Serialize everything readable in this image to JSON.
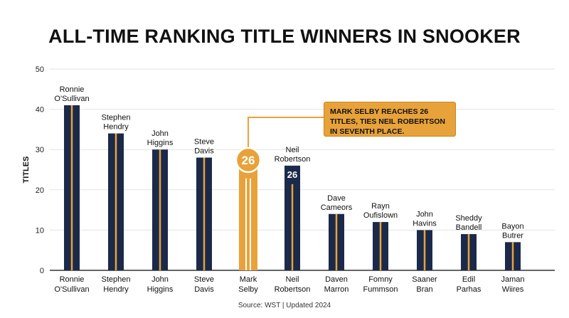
{
  "colors": {
    "bar": "#1b2a4a",
    "accent": "#e8a23a",
    "grid": "#e3e3e3",
    "axis": "#333333"
  },
  "chart_data": {
    "type": "bar",
    "title": "ALL-TIME RANKING TITLE WINNERS IN SNOOKER",
    "ylabel": "TITLES",
    "xlabel": "",
    "ylim": [
      0,
      50
    ],
    "yticks": [
      0,
      10,
      20,
      30,
      40,
      50
    ],
    "grid": true,
    "categories": [
      "Ronnie O'Sullivan",
      "Stephen Hendry",
      "John Higgins",
      "Steve Davis",
      "Mark Selby",
      "Neil Robertson",
      "Daven Marron",
      "Fomny Fummson",
      "Saaner Bran",
      "Edil Parhas",
      "Jaman Wiires"
    ],
    "category_lines": [
      [
        "Ronnie",
        "O'Sullivan"
      ],
      [
        "Stephen",
        "Hendry"
      ],
      [
        "John",
        "Higgins"
      ],
      [
        "Steve",
        "Davis"
      ],
      [
        "Mark",
        "Selby"
      ],
      [
        "Neil",
        "Robertson"
      ],
      [
        "Daven",
        "Marron"
      ],
      [
        "Fomny",
        "Fummson"
      ],
      [
        "Saaner",
        "Bran"
      ],
      [
        "Edil",
        "Parhas"
      ],
      [
        "Jaman",
        "Wiires"
      ]
    ],
    "bar_labels": [
      [
        "Ronnie",
        "O'Sullivan"
      ],
      [
        "Stephen",
        "Hendry"
      ],
      [
        "John",
        "Higgins"
      ],
      [
        "Steve",
        "Davis"
      ],
      null,
      [
        "Neil",
        "Robertson"
      ],
      [
        "Dave",
        "Cameors"
      ],
      [
        "Rayn",
        "Oufislown"
      ],
      [
        "John",
        "Havins"
      ],
      [
        "Sheddy",
        "Bandell"
      ],
      [
        "Bayon",
        "Butrer"
      ]
    ],
    "values": [
      41,
      34,
      30,
      28,
      26,
      26,
      14,
      12,
      10,
      9,
      7
    ],
    "highlight_index": 4,
    "value_badges": [
      {
        "index": 4,
        "text": "26"
      },
      {
        "index": 5,
        "text": "26"
      }
    ],
    "annotation": "MARK SELBY REACHES 26 TITLES, TIES NEIL ROBERTSON IN SEVENTH PLACE.",
    "source": "Source: WST | Updated 2024"
  }
}
